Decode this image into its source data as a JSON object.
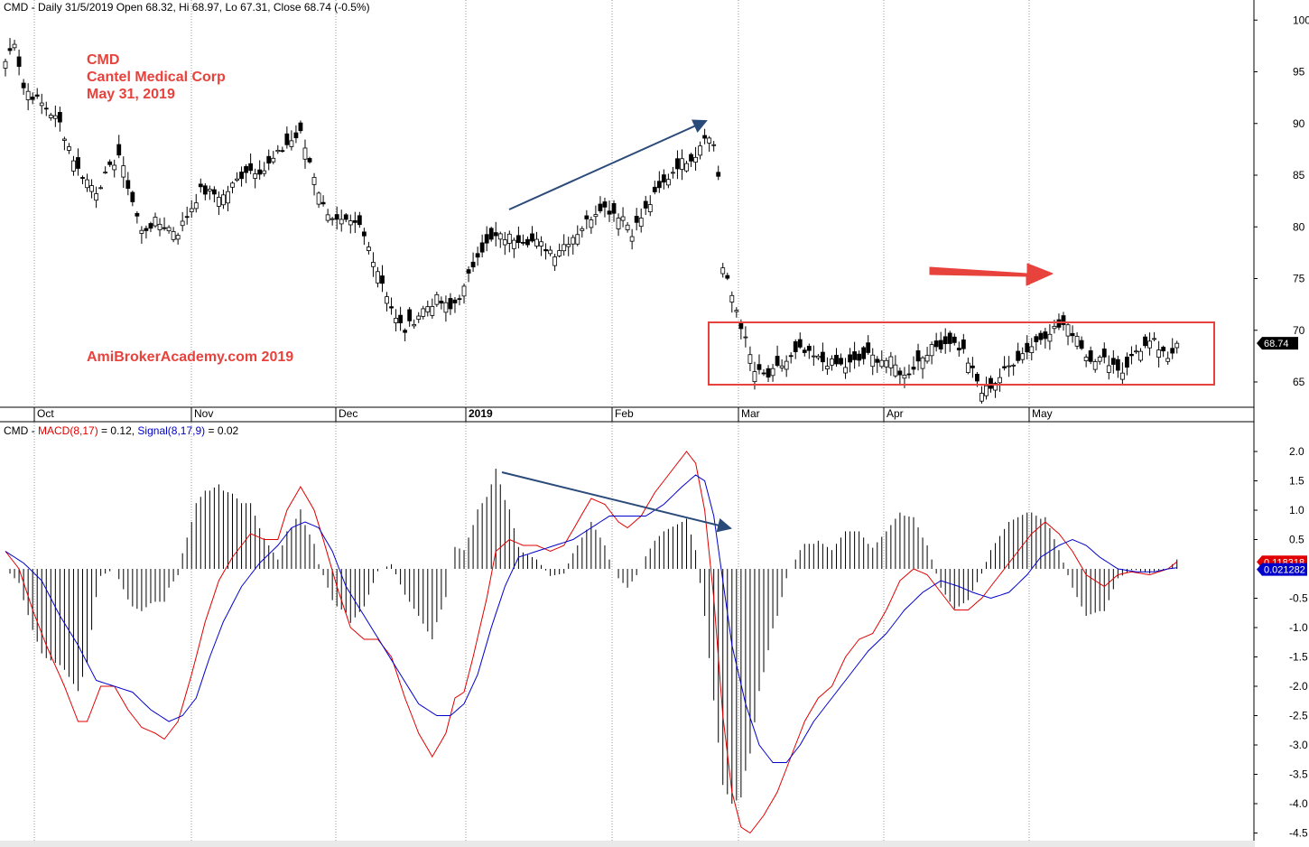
{
  "price_header": {
    "symbol": "CMD",
    "info": "- Daily 31/5/2019 Open 68.32, Hi 68.97, Lo 67.31, Close 68.74 (-0.5%)"
  },
  "macd_header": {
    "symbol": "CMD",
    "sep": "-",
    "macd_label": "MACD(8,17)",
    "macd_value": "= 0.12,",
    "signal_label": "Signal(8,17,9)",
    "signal_value": "= 0.02"
  },
  "annotations": {
    "line1": "CMD",
    "line2": "Cantel Medical Corp",
    "line3": "May 31, 2019",
    "watermark": "AmiBrokerAcademy.com  2019"
  },
  "colors": {
    "up": "#ffffff",
    "down": "#000000",
    "macd": "#e00000",
    "signal": "#0000cc",
    "trend": "#2a4a7a",
    "highlight": "#e8423c",
    "grid": "#9a9a9a"
  },
  "chart_data": [
    {
      "type": "candlestick",
      "title": "CMD - Daily 31/5/2019 Open 68.32, Hi 68.97, Lo 67.31, Close 68.74 (-0.5%)",
      "x_tick_labels": [
        "Oct",
        "Nov",
        "Dec",
        "2019",
        "Feb",
        "Mar",
        "Apr",
        "May"
      ],
      "ylim": [
        62.5,
        101.5
      ],
      "y_ticks": [
        65,
        70,
        75,
        80,
        85,
        90,
        95,
        100
      ],
      "last_close_label": "68.74",
      "close_anchors": [
        [
          0,
          96
        ],
        [
          2,
          98
        ],
        [
          4,
          93.5
        ],
        [
          9,
          91.5
        ],
        [
          12,
          90
        ],
        [
          16,
          85.5
        ],
        [
          20,
          83.5
        ],
        [
          25,
          87
        ],
        [
          30,
          79.5
        ],
        [
          33,
          80.5
        ],
        [
          38,
          79.5
        ],
        [
          43,
          83.5
        ],
        [
          48,
          83
        ],
        [
          53,
          85.5
        ],
        [
          57,
          85.5
        ],
        [
          62,
          88
        ],
        [
          65,
          89
        ],
        [
          68,
          85
        ],
        [
          70,
          82
        ],
        [
          73,
          80.5
        ],
        [
          78,
          80
        ],
        [
          81,
          77
        ],
        [
          84,
          73.5
        ],
        [
          86,
          71
        ],
        [
          88,
          70
        ],
        [
          92,
          72
        ],
        [
          95,
          73
        ],
        [
          98,
          72
        ],
        [
          101,
          74
        ],
        [
          104,
          77.5
        ],
        [
          108,
          79
        ],
        [
          112,
          79
        ],
        [
          117,
          78.5
        ],
        [
          121,
          77.5
        ],
        [
          126,
          79.5
        ],
        [
          131,
          82
        ],
        [
          136,
          81
        ],
        [
          138,
          79.5
        ],
        [
          143,
          83
        ],
        [
          148,
          86
        ],
        [
          152,
          87
        ],
        [
          154,
          89
        ],
        [
          156,
          88
        ],
        [
          157,
          85
        ],
        [
          158,
          76
        ],
        [
          161,
          72
        ],
        [
          163,
          69
        ],
        [
          165,
          66
        ],
        [
          168,
          65.5
        ],
        [
          172,
          67
        ],
        [
          175,
          68
        ],
        [
          180,
          67
        ],
        [
          185,
          66.5
        ],
        [
          190,
          67.5
        ],
        [
          195,
          67
        ],
        [
          198,
          65.5
        ],
        [
          203,
          68
        ],
        [
          208,
          69
        ],
        [
          211,
          68
        ],
        [
          213,
          66
        ],
        [
          215,
          64
        ],
        [
          218,
          65
        ],
        [
          222,
          67
        ],
        [
          226,
          68.5
        ],
        [
          230,
          70
        ],
        [
          233,
          70.5
        ],
        [
          236,
          69.5
        ],
        [
          238,
          67.5
        ],
        [
          243,
          67
        ],
        [
          246,
          66
        ],
        [
          249,
          68
        ],
        [
          253,
          68.8
        ],
        [
          256,
          67
        ],
        [
          258,
          68.74
        ]
      ],
      "annotations": [
        "trend line: higher highs Dec-Feb",
        "arrow pointing right",
        "consolidation rectangle Mar-May"
      ]
    },
    {
      "type": "line",
      "title": "CMD - MACD(8,17) = 0.12, Signal(8,17,9) = 0.02",
      "ylim": [
        -4.6,
        2.2
      ],
      "y_ticks": [
        2.0,
        1.5,
        1.0,
        0.5,
        -0.5,
        -1.0,
        -1.5,
        -2.0,
        -2.5,
        -3.0,
        -3.5,
        -4.0,
        -4.5
      ],
      "last_macd_label": "0.118318",
      "last_signal_label": "0.021282",
      "series": [
        {
          "name": "MACD(8,17)",
          "color": "#e00000",
          "anchors": [
            [
              0,
              0.3
            ],
            [
              3,
              0.0
            ],
            [
              6,
              -0.7
            ],
            [
              9,
              -1.3
            ],
            [
              13,
              -2.0
            ],
            [
              16,
              -2.6
            ],
            [
              18,
              -2.6
            ],
            [
              21,
              -2.0
            ],
            [
              24,
              -2.0
            ],
            [
              27,
              -2.4
            ],
            [
              30,
              -2.7
            ],
            [
              33,
              -2.8
            ],
            [
              35,
              -2.9
            ],
            [
              38,
              -2.6
            ],
            [
              41,
              -1.8
            ],
            [
              44,
              -0.9
            ],
            [
              47,
              -0.2
            ],
            [
              50,
              0.2
            ],
            [
              54,
              0.6
            ],
            [
              57,
              0.5
            ],
            [
              60,
              0.5
            ],
            [
              62,
              1.0
            ],
            [
              65,
              1.4
            ],
            [
              68,
              1.0
            ],
            [
              70,
              0.5
            ],
            [
              73,
              -0.3
            ],
            [
              76,
              -1.0
            ],
            [
              79,
              -1.2
            ],
            [
              82,
              -1.2
            ],
            [
              85,
              -1.5
            ],
            [
              88,
              -2.2
            ],
            [
              91,
              -2.8
            ],
            [
              94,
              -3.2
            ],
            [
              97,
              -2.8
            ],
            [
              99,
              -2.2
            ],
            [
              101,
              -2.1
            ],
            [
              103,
              -1.5
            ],
            [
              106,
              -0.5
            ],
            [
              108,
              0.3
            ],
            [
              111,
              0.5
            ],
            [
              114,
              0.4
            ],
            [
              117,
              0.4
            ],
            [
              120,
              0.3
            ],
            [
              123,
              0.4
            ],
            [
              126,
              0.8
            ],
            [
              129,
              1.2
            ],
            [
              132,
              1.1
            ],
            [
              135,
              0.8
            ],
            [
              137,
              0.7
            ],
            [
              140,
              0.9
            ],
            [
              143,
              1.3
            ],
            [
              146,
              1.6
            ],
            [
              150,
              2.0
            ],
            [
              152,
              1.8
            ],
            [
              154,
              1.0
            ],
            [
              156,
              -0.5
            ],
            [
              158,
              -2.5
            ],
            [
              160,
              -3.8
            ],
            [
              162,
              -4.4
            ],
            [
              164,
              -4.5
            ],
            [
              167,
              -4.2
            ],
            [
              170,
              -3.8
            ],
            [
              173,
              -3.2
            ],
            [
              176,
              -2.6
            ],
            [
              179,
              -2.2
            ],
            [
              182,
              -2.0
            ],
            [
              185,
              -1.5
            ],
            [
              188,
              -1.2
            ],
            [
              191,
              -1.1
            ],
            [
              194,
              -0.7
            ],
            [
              197,
              -0.2
            ],
            [
              200,
              0.0
            ],
            [
              203,
              -0.1
            ],
            [
              206,
              -0.4
            ],
            [
              209,
              -0.7
            ],
            [
              212,
              -0.7
            ],
            [
              215,
              -0.5
            ],
            [
              218,
              -0.2
            ],
            [
              222,
              0.2
            ],
            [
              226,
              0.6
            ],
            [
              229,
              0.8
            ],
            [
              232,
              0.6
            ],
            [
              235,
              0.3
            ],
            [
              238,
              -0.1
            ],
            [
              242,
              -0.3
            ],
            [
              245,
              -0.1
            ],
            [
              248,
              -0.05
            ],
            [
              252,
              -0.1
            ],
            [
              256,
              0.0
            ],
            [
              258,
              0.12
            ]
          ]
        },
        {
          "name": "Signal(8,17,9)",
          "color": "#0000cc",
          "anchors": [
            [
              0,
              0.3
            ],
            [
              4,
              0.1
            ],
            [
              8,
              -0.2
            ],
            [
              12,
              -0.8
            ],
            [
              16,
              -1.3
            ],
            [
              20,
              -1.9
            ],
            [
              24,
              -2.0
            ],
            [
              28,
              -2.1
            ],
            [
              32,
              -2.4
            ],
            [
              36,
              -2.6
            ],
            [
              39,
              -2.5
            ],
            [
              42,
              -2.2
            ],
            [
              45,
              -1.5
            ],
            [
              48,
              -0.9
            ],
            [
              52,
              -0.3
            ],
            [
              56,
              0.1
            ],
            [
              60,
              0.4
            ],
            [
              63,
              0.7
            ],
            [
              66,
              0.8
            ],
            [
              69,
              0.7
            ],
            [
              72,
              0.3
            ],
            [
              75,
              -0.3
            ],
            [
              79,
              -0.8
            ],
            [
              83,
              -1.3
            ],
            [
              87,
              -1.8
            ],
            [
              91,
              -2.3
            ],
            [
              95,
              -2.5
            ],
            [
              98,
              -2.5
            ],
            [
              101,
              -2.3
            ],
            [
              104,
              -1.8
            ],
            [
              107,
              -1.0
            ],
            [
              110,
              -0.3
            ],
            [
              113,
              0.2
            ],
            [
              117,
              0.3
            ],
            [
              121,
              0.4
            ],
            [
              125,
              0.5
            ],
            [
              129,
              0.7
            ],
            [
              133,
              0.9
            ],
            [
              137,
              0.9
            ],
            [
              141,
              0.9
            ],
            [
              145,
              1.1
            ],
            [
              149,
              1.4
            ],
            [
              152,
              1.6
            ],
            [
              154,
              1.5
            ],
            [
              156,
              0.9
            ],
            [
              158,
              -0.2
            ],
            [
              160,
              -1.3
            ],
            [
              163,
              -2.3
            ],
            [
              166,
              -3.0
            ],
            [
              169,
              -3.3
            ],
            [
              172,
              -3.3
            ],
            [
              175,
              -3.0
            ],
            [
              178,
              -2.6
            ],
            [
              182,
              -2.2
            ],
            [
              186,
              -1.8
            ],
            [
              190,
              -1.4
            ],
            [
              194,
              -1.1
            ],
            [
              198,
              -0.7
            ],
            [
              202,
              -0.4
            ],
            [
              206,
              -0.2
            ],
            [
              210,
              -0.3
            ],
            [
              213,
              -0.4
            ],
            [
              217,
              -0.5
            ],
            [
              221,
              -0.4
            ],
            [
              225,
              -0.1
            ],
            [
              228,
              0.2
            ],
            [
              232,
              0.4
            ],
            [
              235,
              0.5
            ],
            [
              238,
              0.4
            ],
            [
              241,
              0.2
            ],
            [
              245,
              0.0
            ],
            [
              249,
              -0.05
            ],
            [
              253,
              -0.05
            ],
            [
              256,
              0.0
            ],
            [
              258,
              0.02
            ]
          ]
        }
      ],
      "histogram": "MACD minus Signal (derived)",
      "annotations": [
        "trend line: lower highs Dec-Feb (divergence)"
      ]
    }
  ]
}
